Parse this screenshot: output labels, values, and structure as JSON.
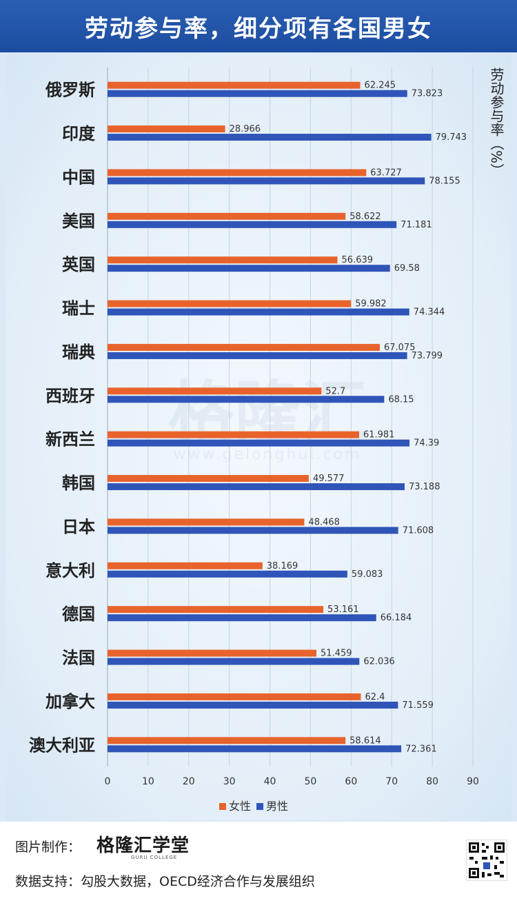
{
  "header": {
    "title": "劳动参与率，细分项有各国男女"
  },
  "footer": {
    "credit_label": "图片制作：",
    "brand": "格隆汇学堂",
    "brand_sub": "GURU COLLEGE",
    "source": "数据支持：勾股大数据，OECD经济合作与发展组织"
  },
  "watermark": {
    "text": "格隆汇",
    "url": "www.gelonghui.com"
  },
  "colors": {
    "female": "#e8632b",
    "male": "#2f55b8"
  },
  "chart_data": {
    "type": "bar",
    "orientation": "horizontal",
    "categories": [
      "俄罗斯",
      "印度",
      "中国",
      "美国",
      "英国",
      "瑞士",
      "瑞典",
      "西班牙",
      "新西兰",
      "韩国",
      "日本",
      "意大利",
      "德国",
      "法国",
      "加拿大",
      "澳大利亚"
    ],
    "series": [
      {
        "name": "女性",
        "color": "#e8632b",
        "values": [
          62.245,
          28.966,
          63.727,
          58.622,
          56.639,
          59.982,
          67.075,
          52.7,
          61.981,
          49.577,
          48.468,
          38.169,
          53.161,
          51.459,
          62.4,
          58.614
        ]
      },
      {
        "name": "男性",
        "color": "#2f55b8",
        "values": [
          73.823,
          79.743,
          78.155,
          71.181,
          69.58,
          74.344,
          73.799,
          68.15,
          74.39,
          73.188,
          71.608,
          59.083,
          66.184,
          62.036,
          71.559,
          72.361
        ]
      }
    ],
    "xlim": [
      0,
      90
    ],
    "xticks": [
      0,
      10,
      20,
      30,
      40,
      50,
      60,
      70,
      80,
      90
    ],
    "ylabel": "劳动参与率（%）",
    "grid": true,
    "legend": "bottom"
  }
}
